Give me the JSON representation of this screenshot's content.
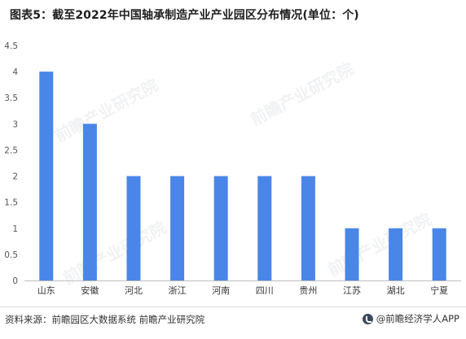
{
  "title": "图表5：截至2022年中国轴承制造产业产业园区分布情况(单位：个)",
  "footer": {
    "source": "资料来源：前瞻园区大数据系统 前瞻产业研究院",
    "brand": "@前瞻经济学人APP"
  },
  "watermark": {
    "text": "前瞻产业研究院"
  },
  "colors": {
    "bar": "#4a86e8",
    "axis": "#bfbfbf",
    "tick_text": "#555555"
  },
  "chart_data": {
    "type": "bar",
    "title": "图表5：截至2022年中国轴承制造产业产业园区分布情况(单位：个)",
    "categories": [
      "山东",
      "安徽",
      "河北",
      "浙江",
      "河南",
      "四川",
      "贵州",
      "江苏",
      "湖北",
      "宁夏"
    ],
    "values": [
      4,
      3,
      2,
      2,
      2,
      2,
      2,
      1,
      1,
      1
    ],
    "ylim": [
      0,
      4.5
    ],
    "yticks": [
      "0",
      "0.5",
      "1",
      "1.5",
      "2",
      "2.5",
      "3",
      "3.5",
      "4",
      "4.5"
    ],
    "xlabel": "",
    "ylabel": "",
    "grid": false,
    "legend": "none"
  }
}
